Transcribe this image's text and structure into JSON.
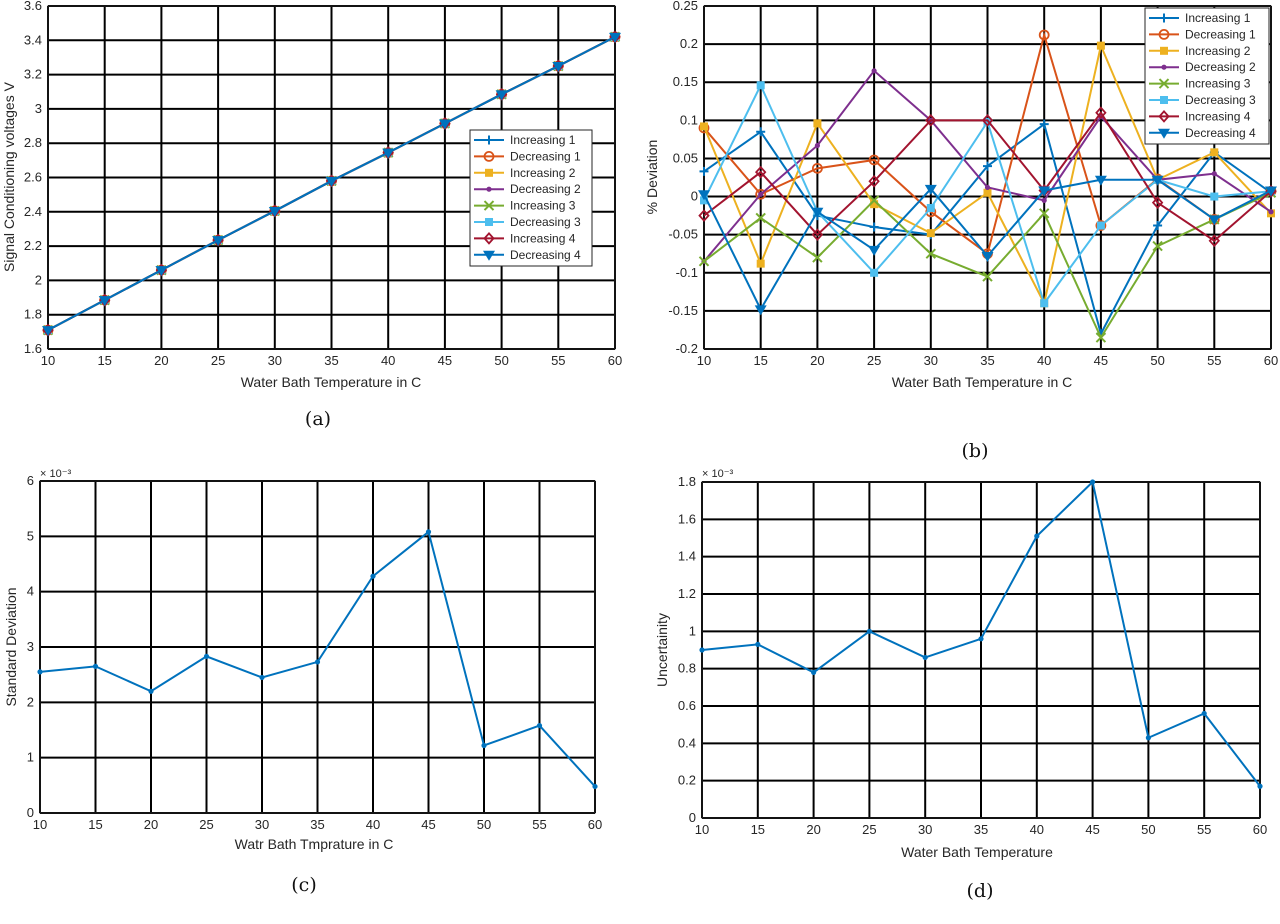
{
  "colors": {
    "grid": "#000000",
    "axis": "#262626",
    "series": [
      "#0072BD",
      "#D95319",
      "#EDB120",
      "#7E2F8E",
      "#77AC30",
      "#4DBEEE",
      "#A2142F",
      "#0072BD"
    ]
  },
  "chart_data": [
    {
      "type": "line",
      "caption": "(a)",
      "xlabel": "Water Bath Temperature in C",
      "ylabel": "Signal Conditioning voltages V",
      "xlim": [
        10,
        60
      ],
      "ylim": [
        1.6,
        3.6
      ],
      "xticks": [
        10,
        15,
        20,
        25,
        30,
        35,
        40,
        45,
        50,
        55,
        60
      ],
      "yticks": [
        1.6,
        1.8,
        2,
        2.2,
        2.4,
        2.6,
        2.8,
        3,
        3.2,
        3.4,
        3.6
      ],
      "ytick_labels": [
        "1.6",
        "1.8",
        "2",
        "2.2",
        "2.4",
        "2.6",
        "2.8",
        "3",
        "3.2",
        "3.4",
        "3.6"
      ],
      "grid": true,
      "legend": "right",
      "x": [
        10,
        15,
        20,
        25,
        30,
        35,
        40,
        45,
        50,
        55,
        60
      ],
      "series": [
        {
          "name": "Increasing 1",
          "marker": "plus",
          "values": [
            1.71,
            1.885,
            2.06,
            2.235,
            2.405,
            2.58,
            2.745,
            2.915,
            3.085,
            3.25,
            3.42
          ]
        },
        {
          "name": "Decreasing 1",
          "marker": "circle",
          "values": [
            1.71,
            1.885,
            2.06,
            2.235,
            2.405,
            2.58,
            2.745,
            2.915,
            3.085,
            3.25,
            3.42
          ]
        },
        {
          "name": "Increasing 2",
          "marker": "square",
          "values": [
            1.71,
            1.885,
            2.06,
            2.235,
            2.405,
            2.58,
            2.745,
            2.915,
            3.085,
            3.25,
            3.42
          ]
        },
        {
          "name": "Decreasing 2",
          "marker": "dot",
          "values": [
            1.71,
            1.885,
            2.06,
            2.235,
            2.405,
            2.58,
            2.745,
            2.915,
            3.085,
            3.25,
            3.42
          ]
        },
        {
          "name": "Increasing 3",
          "marker": "x",
          "values": [
            1.71,
            1.885,
            2.06,
            2.235,
            2.405,
            2.58,
            2.745,
            2.915,
            3.085,
            3.25,
            3.42
          ]
        },
        {
          "name": "Decreasing 3",
          "marker": "square",
          "values": [
            1.71,
            1.885,
            2.06,
            2.235,
            2.405,
            2.58,
            2.745,
            2.915,
            3.085,
            3.25,
            3.42
          ]
        },
        {
          "name": "Increasing 4",
          "marker": "diamond",
          "values": [
            1.71,
            1.885,
            2.06,
            2.235,
            2.405,
            2.58,
            2.745,
            2.915,
            3.085,
            3.25,
            3.42
          ]
        },
        {
          "name": "Decreasing 4",
          "marker": "triangle-down",
          "values": [
            1.71,
            1.885,
            2.06,
            2.235,
            2.405,
            2.58,
            2.745,
            2.915,
            3.085,
            3.25,
            3.42
          ]
        }
      ]
    },
    {
      "type": "line",
      "caption": "(b)",
      "xlabel": "Water Bath Temperature in C",
      "ylabel": "% Deviation",
      "xlim": [
        10,
        60
      ],
      "ylim": [
        -0.2,
        0.25
      ],
      "xticks": [
        10,
        15,
        20,
        25,
        30,
        35,
        40,
        45,
        50,
        55,
        60
      ],
      "yticks": [
        -0.2,
        -0.15,
        -0.1,
        -0.05,
        0,
        0.05,
        0.1,
        0.15,
        0.2,
        0.25
      ],
      "ytick_labels": [
        "-0.2",
        "-0.15",
        "-0.1",
        "-0.05",
        "0",
        "0.05",
        "0.1",
        "0.15",
        "0.2",
        "0.25"
      ],
      "grid": true,
      "legend": "top-right",
      "x": [
        10,
        15,
        20,
        25,
        30,
        35,
        40,
        45,
        50,
        55,
        60
      ],
      "series": [
        {
          "name": "Increasing 1",
          "marker": "plus",
          "values": [
            0.033,
            0.085,
            -0.025,
            -0.04,
            -0.05,
            0.04,
            0.095,
            -0.18,
            -0.038,
            0.058,
            0.005
          ]
        },
        {
          "name": "Decreasing 1",
          "marker": "circle",
          "values": [
            0.09,
            0.003,
            0.037,
            0.048,
            -0.02,
            -0.075,
            0.212,
            -0.038,
            0.023,
            -0.03,
            0.007
          ]
        },
        {
          "name": "Increasing 2",
          "marker": "square",
          "values": [
            0.092,
            -0.088,
            0.096,
            -0.01,
            -0.048,
            0.005,
            -0.14,
            0.198,
            0.022,
            0.058,
            -0.022
          ]
        },
        {
          "name": "Decreasing 2",
          "marker": "dot",
          "values": [
            -0.085,
            0.003,
            0.067,
            0.165,
            0.1,
            0.012,
            -0.005,
            0.105,
            0.022,
            0.03,
            -0.02
          ]
        },
        {
          "name": "Increasing 3",
          "marker": "x",
          "values": [
            -0.085,
            -0.028,
            -0.08,
            -0.005,
            -0.075,
            -0.105,
            -0.022,
            -0.185,
            -0.065,
            -0.03,
            0.005
          ]
        },
        {
          "name": "Decreasing 3",
          "marker": "square",
          "values": [
            -0.005,
            0.146,
            -0.02,
            -0.1,
            -0.015,
            0.098,
            -0.14,
            -0.038,
            0.022,
            0.0,
            0.007
          ]
        },
        {
          "name": "Increasing 4",
          "marker": "diamond",
          "values": [
            -0.025,
            0.032,
            -0.05,
            0.02,
            0.1,
            0.1,
            0.008,
            0.11,
            -0.008,
            -0.058,
            0.007
          ]
        },
        {
          "name": "Decreasing 4",
          "marker": "triangle-down",
          "values": [
            0.003,
            -0.148,
            -0.02,
            -0.07,
            0.01,
            -0.078,
            0.008,
            0.022,
            0.022,
            -0.03,
            0.008
          ]
        }
      ]
    },
    {
      "type": "line",
      "caption": "(c)",
      "xlabel": "Watr Bath Tmprature in C",
      "ylabel": "Standard Deviation",
      "exponent_label": "× 10⁻³",
      "xlim": [
        10,
        60
      ],
      "ylim": [
        0,
        6
      ],
      "xticks": [
        10,
        15,
        20,
        25,
        30,
        35,
        40,
        45,
        50,
        55,
        60
      ],
      "yticks": [
        0,
        1,
        2,
        3,
        4,
        5,
        6
      ],
      "ytick_labels": [
        "0",
        "1",
        "2",
        "3",
        "4",
        "5",
        "6"
      ],
      "grid": true,
      "x": [
        10,
        15,
        20,
        25,
        30,
        35,
        40,
        45,
        50,
        55,
        60
      ],
      "series": [
        {
          "marker": "dot",
          "values": [
            2.55,
            2.65,
            2.2,
            2.83,
            2.45,
            2.73,
            4.28,
            5.08,
            1.22,
            1.58,
            0.48
          ]
        }
      ]
    },
    {
      "type": "line",
      "caption": "(d)",
      "xlabel": "Water Bath Temperature",
      "ylabel": "Uncertainity",
      "exponent_label": "× 10⁻³",
      "xlim": [
        10,
        60
      ],
      "ylim": [
        0,
        1.8
      ],
      "xticks": [
        10,
        15,
        20,
        25,
        30,
        35,
        40,
        45,
        50,
        55,
        60
      ],
      "yticks": [
        0,
        0.2,
        0.4,
        0.6,
        0.8,
        1,
        1.2,
        1.4,
        1.6,
        1.8
      ],
      "ytick_labels": [
        "0",
        "0.2",
        "0.4",
        "0.6",
        "0.8",
        "1",
        "1.2",
        "1.4",
        "1.6",
        "1.8"
      ],
      "grid": true,
      "x": [
        10,
        15,
        20,
        25,
        30,
        35,
        40,
        45,
        50,
        55,
        60
      ],
      "series": [
        {
          "marker": "dot",
          "values": [
            0.9,
            0.93,
            0.78,
            1.0,
            0.86,
            0.96,
            1.51,
            1.8,
            0.43,
            0.56,
            0.17
          ]
        }
      ]
    }
  ]
}
